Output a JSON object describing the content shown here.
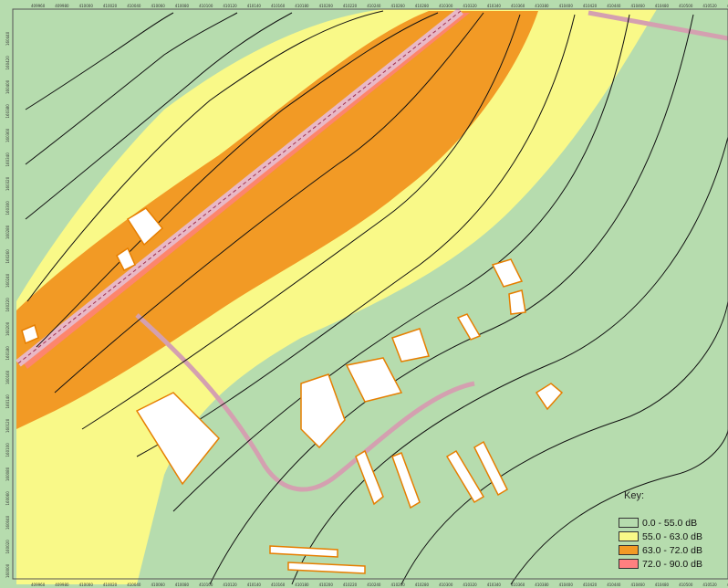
{
  "colors": {
    "band_0_55": "#b6dcae",
    "band_55_63": "#f9f988",
    "band_63_72": "#f29a25",
    "band_72_90": "#ff8080",
    "contour": "#111111",
    "building_fill": "#ffffff",
    "building_outline": "#e67e00",
    "road": "#d4a0b0"
  },
  "legend": {
    "title": "Key:",
    "items": [
      {
        "label": "0.0 - 55.0 dB",
        "color": "#b6dcae"
      },
      {
        "label": "55.0 - 63.0 dB",
        "color": "#f9f988"
      },
      {
        "label": "63.0 - 72.0 dB",
        "color": "#f29a25"
      },
      {
        "label": "72.0 - 90.0 dB",
        "color": "#ff8080"
      }
    ]
  },
  "axis": {
    "x_ticks": [
      "409960",
      "409980",
      "410000",
      "410020",
      "410040",
      "410060",
      "410080",
      "410100",
      "410120",
      "410140",
      "410160",
      "410180",
      "410200",
      "410220",
      "410240",
      "410260",
      "410280",
      "410300",
      "410320",
      "410340",
      "410360",
      "410380",
      "410400",
      "410420",
      "410440",
      "410460",
      "410480",
      "410500",
      "410520",
      "410540"
    ],
    "y_ticks": [
      "160440",
      "160420",
      "160400",
      "160380",
      "160360",
      "160340",
      "160320",
      "160300",
      "160280",
      "160260",
      "160240",
      "160220",
      "160200",
      "160180",
      "160160",
      "160140",
      "160120",
      "160100",
      "160080",
      "160060",
      "160040",
      "160020",
      "160000"
    ]
  }
}
